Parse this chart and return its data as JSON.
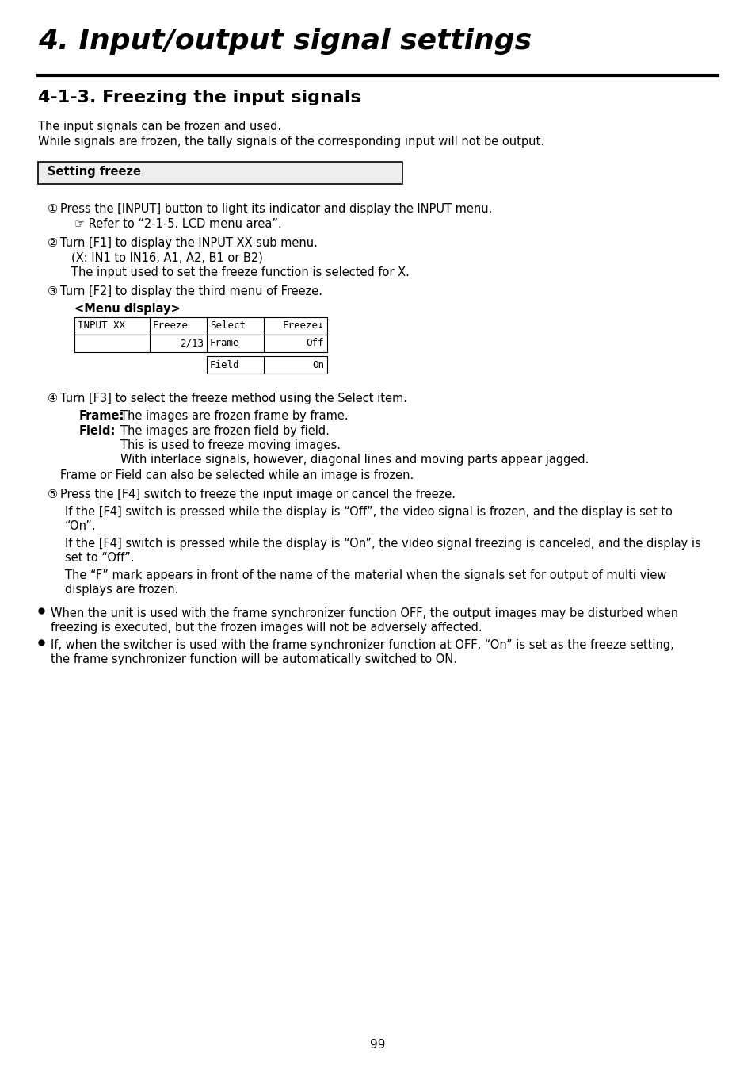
{
  "bg_color": "#ffffff",
  "title_italic": "4. Input/output signal settings",
  "section_heading": "4-1-3. Freezing the input signals",
  "intro_lines": [
    "The input signals can be frozen and used.",
    "While signals are frozen, the tally signals of the corresponding input will not be output."
  ],
  "box_label": "Setting freeze",
  "steps": [
    {
      "num": "①",
      "text": "Press the [INPUT] button to light its indicator and display the INPUT menu.",
      "sub": [
        "☞ Refer to “2-1-5. LCD menu area”."
      ]
    },
    {
      "num": "②",
      "text": "Turn [F1] to display the INPUT XX sub menu.",
      "sub": [
        "(X: IN1 to IN16, A1, A2, B1 or B2)",
        "The input used to set the freeze function is selected for X."
      ]
    },
    {
      "num": "③",
      "text": "Turn [F2] to display the third menu of Freeze.",
      "sub": []
    }
  ],
  "menu_display_label": "<Menu display>",
  "menu_table": {
    "row1": [
      "INPUT XX",
      "Freeze",
      "Select",
      "Freeze↓"
    ],
    "row2": [
      "",
      "2/13",
      "Frame",
      "Off"
    ],
    "row3": [
      "",
      "",
      "Field",
      "On"
    ]
  },
  "step4": {
    "num": "④",
    "text": "Turn [F3] to select the freeze method using the Select item."
  },
  "frame_label": "Frame:",
  "frame_text": "The images are frozen frame by frame.",
  "field_label": "Field:",
  "field_lines": [
    "The images are frozen field by field.",
    "This is used to freeze moving images.",
    "With interlace signals, however, diagonal lines and moving parts appear jagged."
  ],
  "frame_or_field": "Frame or Field can also be selected while an image is frozen.",
  "step5": {
    "num": "⑤",
    "text": "Press the [F4] switch to freeze the input image or cancel the freeze."
  },
  "step5_paras": [
    [
      "If the [F4] switch is pressed while the display is “Off”, the video signal is frozen, and the display is set to",
      "“On”."
    ],
    [
      "If the [F4] switch is pressed while the display is “On”, the video signal freezing is canceled, and the display is",
      "set to “Off”."
    ],
    [
      "The “F” mark appears in front of the name of the material when the signals set for output of multi view",
      "displays are frozen."
    ]
  ],
  "bullets": [
    [
      "When the unit is used with the frame synchronizer function OFF, the output images may be disturbed when",
      "freezing is executed, but the frozen images will not be adversely affected."
    ],
    [
      "If, when the switcher is used with the frame synchronizer function at OFF, “On” is set as the freeze setting,",
      "the frame synchronizer function will be automatically switched to ON."
    ]
  ],
  "page_number": "99"
}
